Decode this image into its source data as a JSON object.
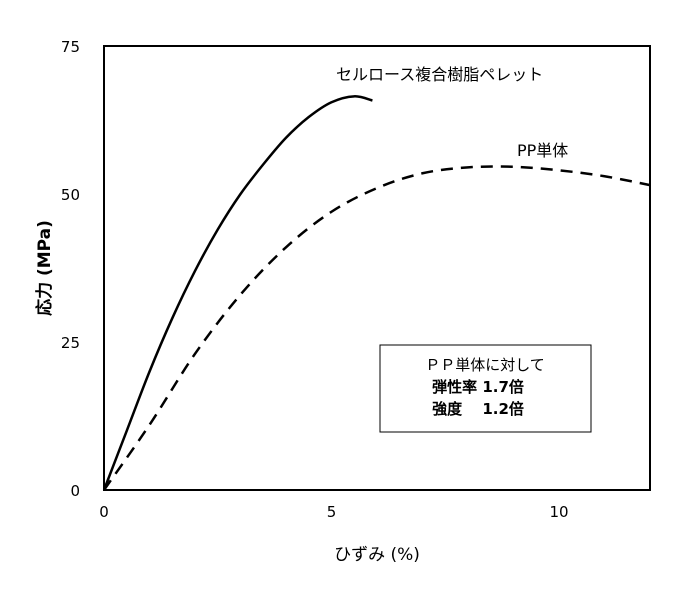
{
  "chart_data": {
    "type": "line",
    "xlabel": "ひずみ (%)",
    "ylabel": "応力 (MPa)",
    "xlim": [
      0,
      12
    ],
    "ylim": [
      0,
      75
    ],
    "xticks": [
      0,
      5,
      10
    ],
    "yticks": [
      0,
      25,
      50,
      75
    ],
    "grid": false,
    "series": [
      {
        "name": "セルロース複合樹脂ペレット",
        "style": "solid",
        "color": "#000000",
        "x": [
          0,
          0.5,
          1,
          1.5,
          2,
          2.5,
          3,
          3.5,
          4,
          4.5,
          5,
          5.5,
          5.9
        ],
        "y": [
          0,
          10,
          20,
          29,
          37,
          44,
          50,
          55,
          59.5,
          63,
          65.5,
          66.5,
          65.8
        ]
      },
      {
        "name": "PP単体",
        "style": "dashed",
        "color": "#000000",
        "x": [
          0,
          1,
          2,
          3,
          4,
          5,
          6,
          7,
          8,
          9,
          10,
          11,
          12
        ],
        "y": [
          0,
          11,
          23,
          33,
          41,
          47,
          51,
          53.5,
          54.5,
          54.6,
          54,
          53,
          51.5
        ]
      }
    ],
    "annotation": [
      "ＰＰ単体に対して",
      "弾性率 1.7倍",
      "強度　 1.2倍"
    ]
  }
}
